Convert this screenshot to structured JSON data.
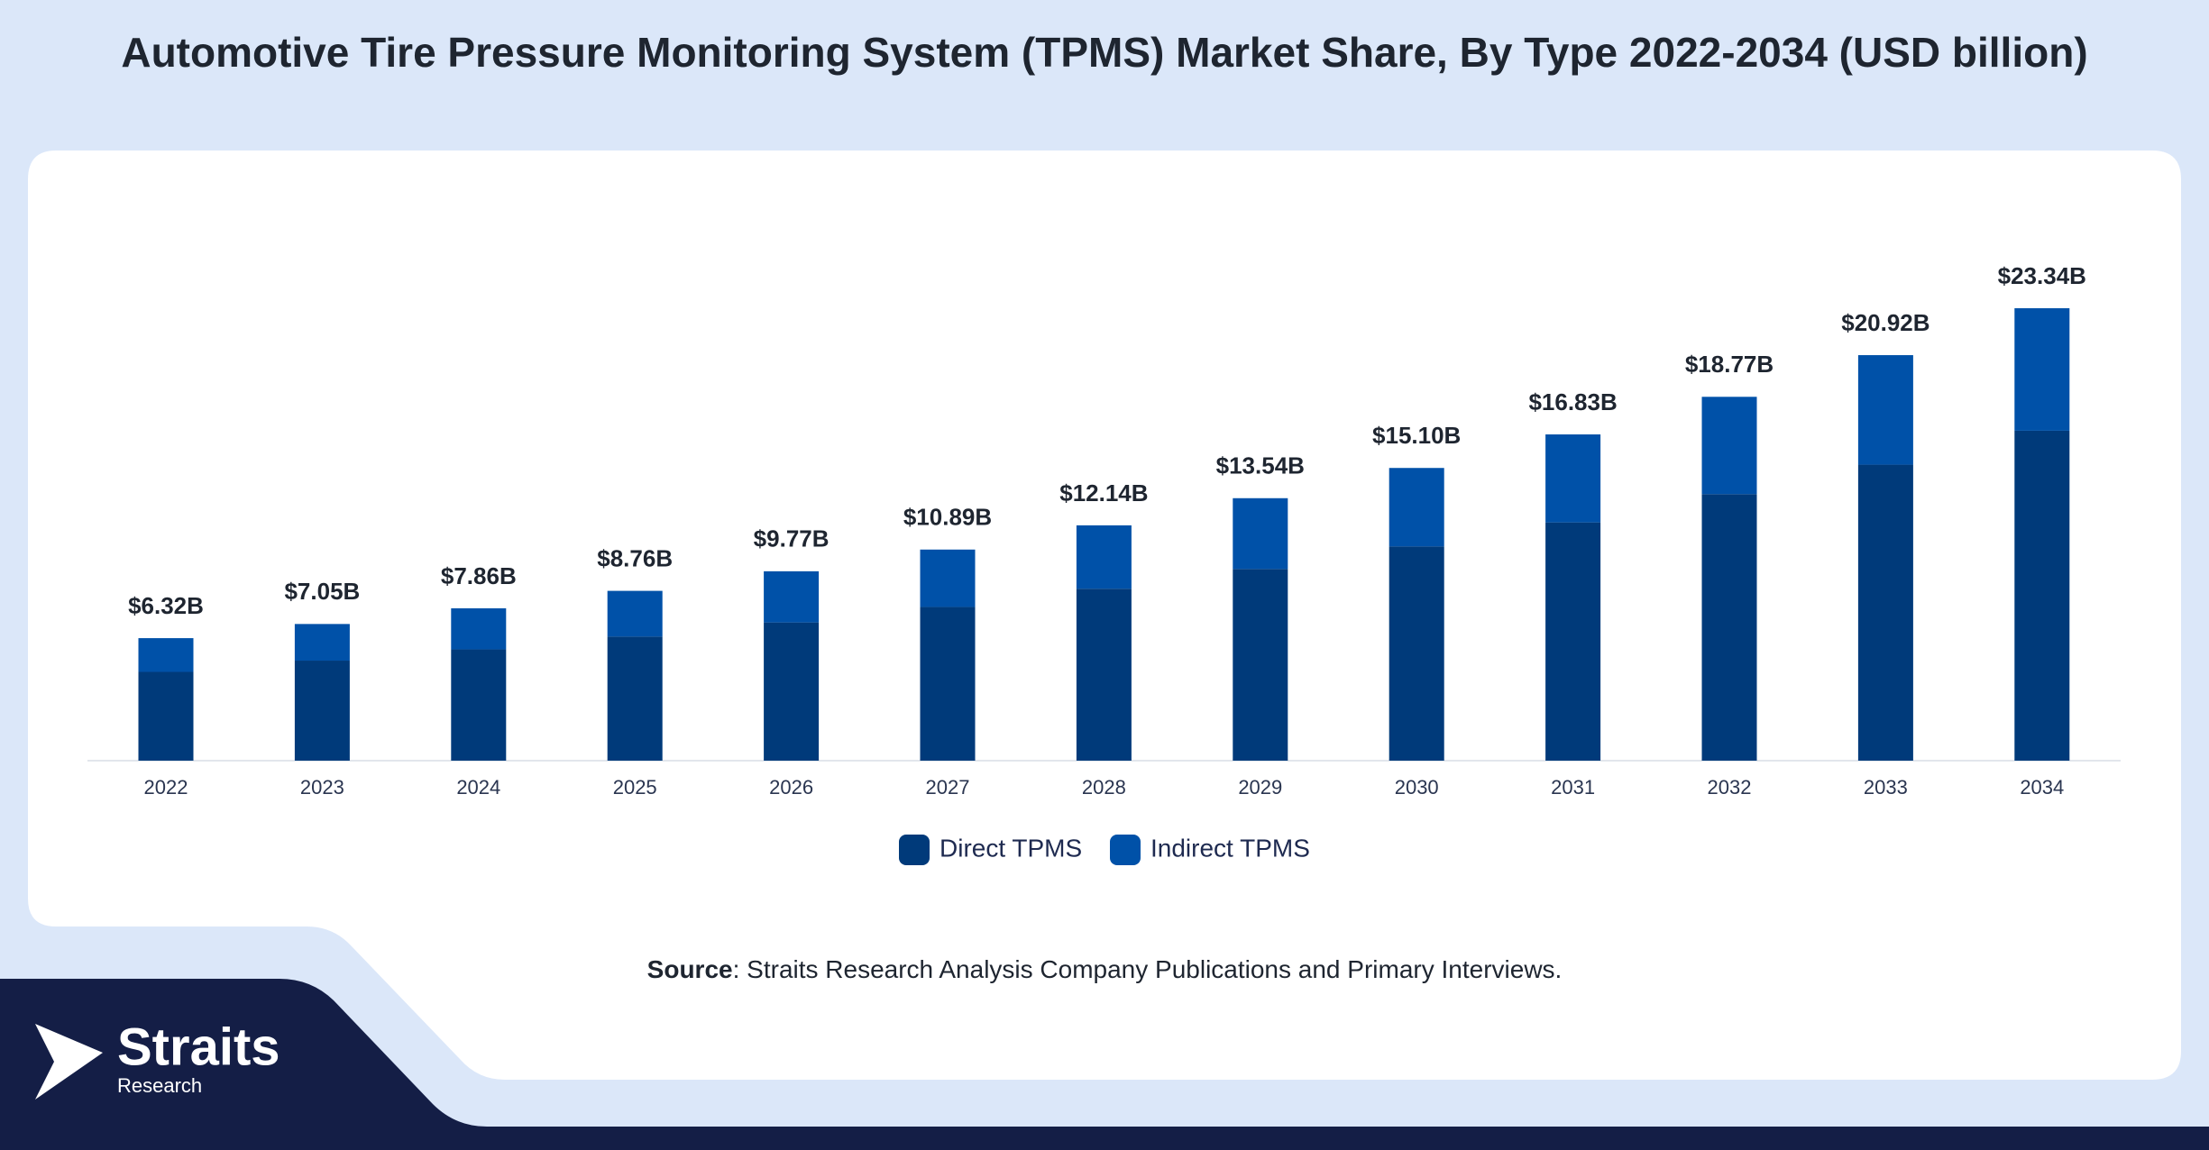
{
  "chart_data": {
    "type": "stacked_bar",
    "title": "Automotive Tire Pressure Monitoring System (TPMS) Market Share, By Type 2022-2034 (USD billion)",
    "categories": [
      "2022",
      "2023",
      "2024",
      "2025",
      "2026",
      "2027",
      "2028",
      "2029",
      "2030",
      "2031",
      "2032",
      "2033",
      "2034"
    ],
    "series": [
      {
        "name": "Direct TPMS",
        "color": "#003a7a",
        "values": [
          4.58,
          5.16,
          5.74,
          6.4,
          7.13,
          7.93,
          8.87,
          9.89,
          11.05,
          12.29,
          13.75,
          15.27,
          17.02
        ]
      },
      {
        "name": "Indirect TPMS",
        "color": "#0051a8",
        "values": [
          1.74,
          1.89,
          2.12,
          2.36,
          2.64,
          2.96,
          3.27,
          3.65,
          4.05,
          4.54,
          5.02,
          5.65,
          6.32
        ]
      }
    ],
    "totals": {
      "values": [
        6.32,
        7.05,
        7.86,
        8.76,
        9.77,
        10.89,
        12.14,
        13.54,
        15.1,
        16.83,
        18.77,
        20.92,
        23.34
      ],
      "value_labels": [
        "$6.32B",
        "$7.05B",
        "$7.86B",
        "$8.76B",
        "$9.77B",
        "$10.89B",
        "$12.14B",
        "$13.54B",
        "$15.10B",
        "$16.83B",
        "$18.77B",
        "$20.92B",
        "$23.34B"
      ]
    },
    "source_label": "Source",
    "source_text": ": Straits Research Analysis Company Publications and Primary Interviews."
  },
  "logo": {
    "name": "Straits",
    "sub": "Research"
  }
}
